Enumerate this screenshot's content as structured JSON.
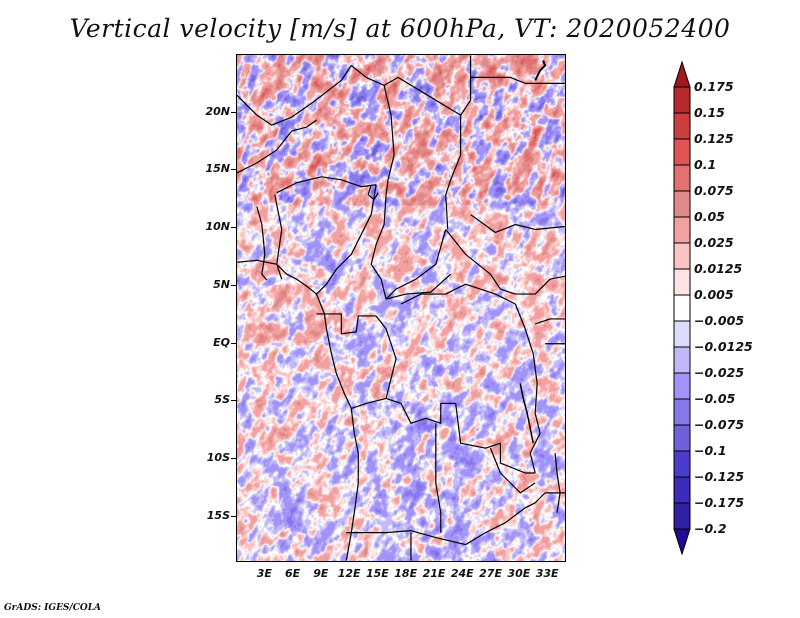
{
  "chart_data": {
    "type": "heatmap",
    "title": "Vertical velocity [m/s] at 600hPa, VT: 2020052400",
    "variable": "Vertical velocity",
    "units": "m/s",
    "level": "600hPa",
    "valid_time": "2020052400",
    "xlabel": "",
    "ylabel": "",
    "x_range_deg_east": [
      0,
      35
    ],
    "y_range_deg_north": [
      -19,
      25
    ],
    "x_ticks": [
      "3E",
      "6E",
      "9E",
      "12E",
      "15E",
      "18E",
      "21E",
      "24E",
      "27E",
      "30E",
      "33E"
    ],
    "x_tick_values": [
      3,
      6,
      9,
      12,
      15,
      18,
      21,
      24,
      27,
      30,
      33
    ],
    "y_ticks": [
      "20N",
      "15N",
      "10N",
      "5N",
      "EQ",
      "5S",
      "10S",
      "15S"
    ],
    "y_tick_values": [
      20,
      15,
      10,
      5,
      0,
      -5,
      -10,
      -15
    ],
    "colorbar": {
      "placement": "right",
      "levels": [
        0.175,
        0.15,
        0.125,
        0.1,
        0.075,
        0.05,
        0.025,
        0.0125,
        0.005,
        -0.005,
        -0.0125,
        -0.025,
        -0.05,
        -0.075,
        -0.1,
        -0.125,
        -0.175,
        -0.2
      ],
      "labels": [
        "0.175",
        "0.15",
        "0.125",
        "0.1",
        "0.075",
        "0.05",
        "0.025",
        "0.0125",
        "0.005",
        "-0.005",
        "-0.0125",
        "-0.025",
        "-0.05",
        "-0.075",
        "-0.1",
        "-0.125",
        "-0.175",
        "-0.2"
      ],
      "colors_top_to_bottom": [
        "#a0191e",
        "#b52a2a",
        "#cc3e3e",
        "#e05454",
        "#e57070",
        "#e08b8b",
        "#f2a0a0",
        "#fac4c4",
        "#fde3e3",
        "#ffffff",
        "#dcdcfa",
        "#c2b8f8",
        "#a293f8",
        "#8778ec",
        "#7060dc",
        "#4a3ccc",
        "#3a2bb8",
        "#2f22a4",
        "#200a98"
      ],
      "extend": "both"
    },
    "grid": false,
    "map_region": "Central Africa",
    "description": "Noisy small-scale field with mostly |w| < 0.05 m/s; stronger ascent (red) bands over Niger/Chad and northern Libya region, broad weak subsidence (blue) over Angola/Zambia."
  },
  "footer": "GrADS: IGES/COLA"
}
